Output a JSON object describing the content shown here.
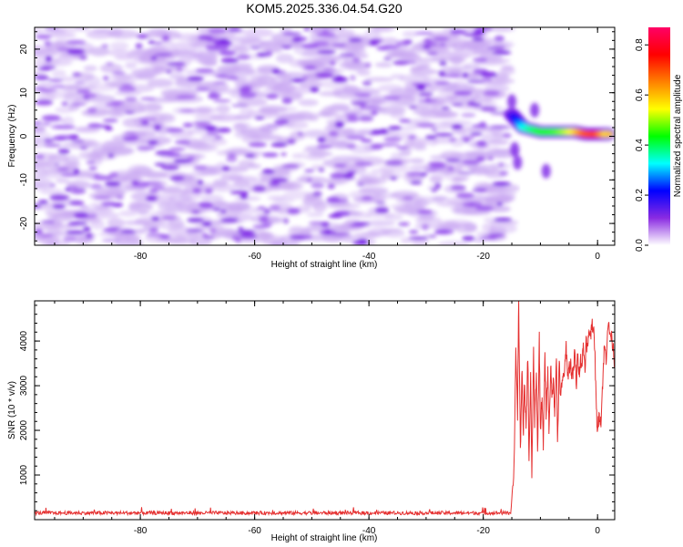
{
  "title": "KOM5.2025.336.04.54.G20",
  "chart_data": [
    {
      "type": "heatmap",
      "xlabel": "Height of straight line (km)",
      "ylabel": "Frequency (Hz)",
      "xlim": [
        -98.5,
        3
      ],
      "ylim": [
        -25,
        25
      ],
      "xticks": [
        -80,
        -60,
        -40,
        -20,
        0
      ],
      "yticks": [
        -20,
        -10,
        0,
        10,
        20
      ],
      "noise_region": {
        "x": [
          -98.5,
          -15.5
        ],
        "amplitude_range": [
          0.0,
          0.15
        ]
      },
      "signal_ridge": [
        {
          "x": -15,
          "freq": 5,
          "amp": 0.15
        },
        {
          "x": -13,
          "freq": 2,
          "amp": 0.35
        },
        {
          "x": -10,
          "freq": 1,
          "amp": 0.45
        },
        {
          "x": -7,
          "freq": 1,
          "amp": 0.5
        },
        {
          "x": -4,
          "freq": 1,
          "amp": 0.6
        },
        {
          "x": -2,
          "freq": 0.5,
          "amp": 0.75
        },
        {
          "x": 0,
          "freq": 0.5,
          "amp": 0.78
        },
        {
          "x": 2,
          "freq": 0.5,
          "amp": 0.6
        }
      ],
      "colorbar": {
        "label": "Normalized spectral amplitude",
        "range": [
          0.0,
          0.87
        ],
        "ticks": [
          0.0,
          0.2,
          0.4,
          0.6,
          0.8
        ],
        "colors": [
          "#ffffff",
          "#8a2be2",
          "#0000ff",
          "#00ffff",
          "#00ff00",
          "#ffff00",
          "#ff8000",
          "#ff0000",
          "#ff0066"
        ]
      }
    },
    {
      "type": "line",
      "xlabel": "Height of straight line (km)",
      "ylabel": "SNR (10 * v/v)",
      "xlim": [
        -98.5,
        3
      ],
      "ylim": [
        0,
        4900
      ],
      "xticks": [
        -80,
        -60,
        -40,
        -20,
        0
      ],
      "yticks": [
        1000,
        2000,
        3000,
        4000
      ],
      "color": "#e53030",
      "series": [
        {
          "baseline": {
            "x": [
              -98.5,
              -15.5
            ],
            "value": 150,
            "noise": 40
          },
          "x": [
            -15.5,
            -15,
            -14.6,
            -14.3,
            -14,
            -13.8,
            -13.5,
            -13.2,
            -13,
            -12.8,
            -12.5,
            -12.2,
            -12,
            -11.7,
            -11.5,
            -11.2,
            -11,
            -10.7,
            -10.5,
            -10.2,
            -10,
            -9.7,
            -9.5,
            -9.2,
            -9,
            -8.7,
            -8.5,
            -8.2,
            -8,
            -7.7,
            -7.5,
            -7.2,
            -7,
            -6.7,
            -6.5,
            -6.2,
            -6,
            -5.7,
            -5.5,
            -5.2,
            -5,
            -4.7,
            -4.5,
            -4.2,
            -4,
            -3.7,
            -3.5,
            -3.2,
            -3,
            -2.7,
            -2.5,
            -2.2,
            -2,
            -1.7,
            -1.5,
            -1.2,
            -1,
            -0.7,
            -0.5,
            -0.2,
            0,
            0.3,
            0.6,
            0.9,
            1.2,
            1.5,
            1.8,
            2.1,
            2.4,
            2.7,
            3
          ],
          "y": [
            150,
            400,
            1200,
            3900,
            2300,
            4900,
            1500,
            3500,
            1800,
            3000,
            2100,
            3700,
            1300,
            3200,
            1000,
            3700,
            2200,
            3300,
            1500,
            4050,
            2000,
            2800,
            1600,
            3700,
            2400,
            3300,
            2000,
            3400,
            2800,
            3100,
            2400,
            3700,
            1700,
            3500,
            2800,
            3000,
            3200,
            3400,
            3900,
            3200,
            3400,
            3500,
            3200,
            3300,
            3800,
            3000,
            3700,
            3300,
            3600,
            3500,
            3900,
            3400,
            4000,
            3800,
            4300,
            4100,
            4500,
            4200,
            3900,
            2400,
            2000,
            2400,
            2200,
            3100,
            3900,
            3600,
            4400,
            4200,
            4100,
            3900,
            3500
          ]
        }
      ]
    }
  ]
}
